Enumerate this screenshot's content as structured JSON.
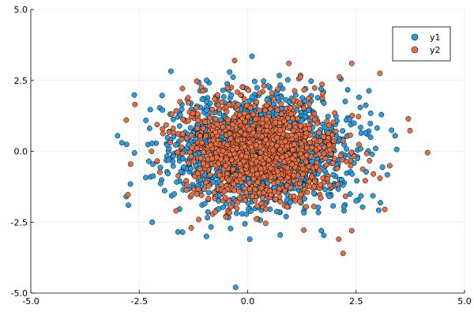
{
  "chart_data": {
    "type": "scatter",
    "title": "",
    "xlabel": "",
    "ylabel": "",
    "xlim": [
      -5.0,
      5.0
    ],
    "ylim": [
      -5.0,
      5.0
    ],
    "xticks": [
      -5.0,
      -2.5,
      0.0,
      2.5,
      5.0
    ],
    "yticks": [
      -5.0,
      -2.5,
      0.0,
      2.5,
      5.0
    ],
    "xtick_labels": [
      "-5.0",
      "-2.5",
      "0.0",
      "2.5",
      "5.0"
    ],
    "ytick_labels": [
      "-5.0",
      "-2.5",
      "0.0",
      "2.5",
      "5.0"
    ],
    "grid": true,
    "legend_position": "top-right",
    "series": [
      {
        "name": "y1",
        "color": "#2c9ee0",
        "distribution": {
          "mean_x": 0.3,
          "mean_y": 0.0,
          "sd_x": 1.0,
          "sd_y": 1.0,
          "n": 1500
        },
        "points": [
          [
            -3.0,
            0.55
          ],
          [
            -2.8,
            -1.6
          ],
          [
            -2.75,
            -1.9
          ],
          [
            -2.2,
            -2.5
          ],
          [
            -1.5,
            -2.85
          ],
          [
            -0.95,
            -3.0
          ],
          [
            0.1,
            3.35
          ],
          [
            0.05,
            -3.1
          ],
          [
            0.75,
            -2.95
          ],
          [
            1.7,
            -2.8
          ],
          [
            2.15,
            2.55
          ],
          [
            2.5,
            -1.75
          ],
          [
            3.4,
            0.55
          ],
          [
            2.95,
            0.1
          ],
          [
            -2.9,
            0.3
          ]
        ]
      },
      {
        "name": "y2",
        "color": "#e26f46",
        "distribution": {
          "mean_x": 0.3,
          "mean_y": 0.0,
          "sd_x": 0.9,
          "sd_y": 0.9,
          "n": 1200
        },
        "points": [
          [
            -0.3,
            3.2
          ],
          [
            0.95,
            3.1
          ],
          [
            2.4,
            3.1
          ],
          [
            3.05,
            2.75
          ],
          [
            4.15,
            -0.05
          ],
          [
            2.1,
            -3.1
          ],
          [
            2.2,
            -3.6
          ],
          [
            2.4,
            -2.8
          ],
          [
            -1.65,
            -2.1
          ],
          [
            -2.6,
            1.65
          ],
          [
            -2.8,
            1.1
          ],
          [
            -2.7,
            -0.45
          ],
          [
            2.9,
            -0.8
          ],
          [
            3.05,
            -0.95
          ],
          [
            -1.3,
            -2.7
          ]
        ]
      }
    ]
  }
}
